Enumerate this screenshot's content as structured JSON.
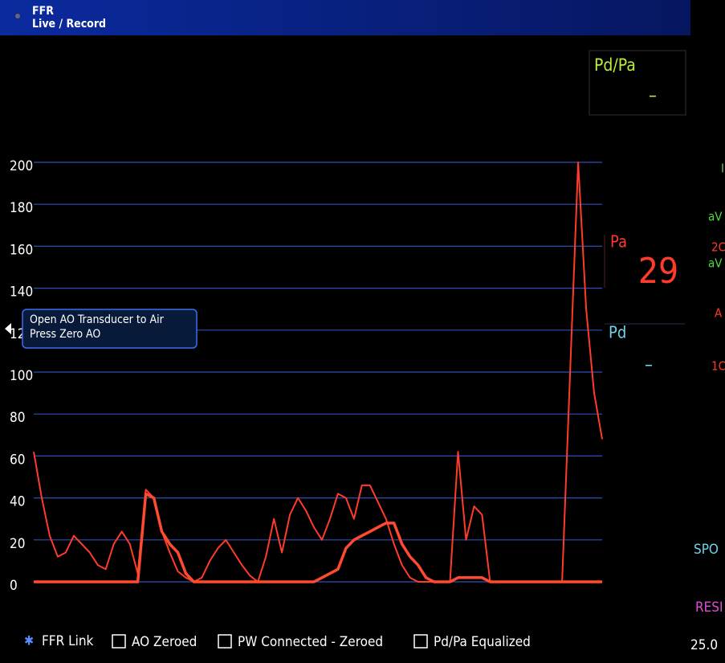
{
  "header": {
    "title": "FFR",
    "subtitle": "Live / Record"
  },
  "chart_data": {
    "type": "line",
    "ylim": [
      0,
      200
    ],
    "yticks": [
      0,
      20,
      40,
      60,
      80,
      100,
      120,
      140,
      160,
      180,
      200
    ],
    "grid": true,
    "series": [
      {
        "color": "#ff3b2a",
        "values": [
          62,
          40,
          22,
          12,
          14,
          22,
          18,
          14,
          8,
          6,
          18,
          24,
          18,
          4,
          44,
          40,
          24,
          14,
          5,
          2,
          0,
          2,
          10,
          16,
          20,
          14,
          8,
          3,
          0,
          12,
          30,
          14,
          32,
          40,
          34,
          26,
          20,
          30,
          42,
          40,
          30,
          46,
          46,
          38,
          30,
          18,
          8,
          2,
          0,
          0,
          0,
          0,
          0,
          62,
          20,
          36,
          32,
          0,
          0,
          0,
          0,
          0,
          0,
          0,
          0,
          0,
          0,
          100,
          200,
          130,
          90,
          68
        ]
      },
      {
        "color": "#ff4a30",
        "values": [
          0,
          0,
          0,
          0,
          0,
          0,
          0,
          0,
          0,
          0,
          0,
          0,
          0,
          0,
          42,
          40,
          24,
          18,
          14,
          4,
          0,
          0,
          0,
          0,
          0,
          0,
          0,
          0,
          0,
          0,
          0,
          0,
          0,
          0,
          0,
          0,
          2,
          4,
          6,
          16,
          20,
          22,
          24,
          26,
          28,
          28,
          18,
          12,
          8,
          2,
          0,
          0,
          0,
          2,
          2,
          2,
          2,
          0,
          0,
          0,
          0,
          0,
          0,
          0,
          0,
          0,
          0,
          0,
          0,
          0,
          0,
          0
        ]
      }
    ]
  },
  "tooltip": {
    "lines": [
      "Open AO Transducer to Air",
      "Press Zero AO"
    ]
  },
  "panels": {
    "pdpa": {
      "label": "Pd/Pa",
      "value": "–"
    },
    "pa": {
      "label": "Pa",
      "value": "29"
    },
    "pd": {
      "label": "Pd",
      "value": "–"
    }
  },
  "side_texts": [
    "I",
    "aV",
    "2C",
    "aV",
    "A",
    "1C",
    "SPO",
    "RESI",
    "25.0"
  ],
  "status": {
    "link": "FFR Link",
    "checks": [
      "AO Zeroed",
      "PW Connected - Zeroed",
      "Pd/Pa Equalized"
    ]
  }
}
